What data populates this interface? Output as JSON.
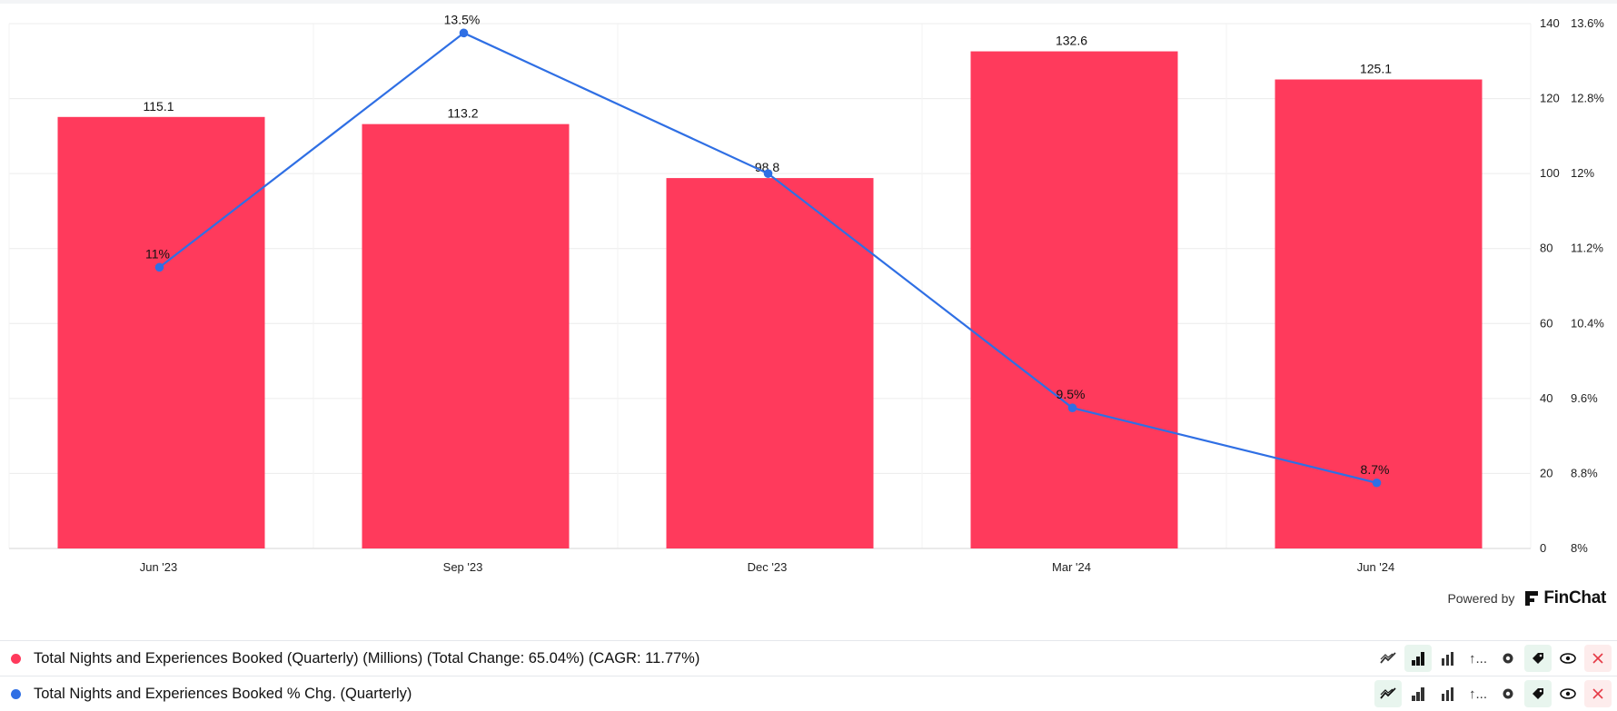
{
  "chart_data": {
    "type": "bar",
    "categories": [
      "Jun '23",
      "Sep '23",
      "Dec '23",
      "Mar '24",
      "Jun '24"
    ],
    "series": [
      {
        "name": "Total Nights and Experiences Booked (Quarterly) (Millions) (Total Change: 65.04%) (CAGR: 11.77%)",
        "type": "bar",
        "axis": "left",
        "values": [
          115.1,
          113.2,
          98.8,
          132.6,
          125.1
        ],
        "labels": [
          "115.1",
          "113.2",
          "98.8",
          "132.6",
          "125.1"
        ]
      },
      {
        "name": "Total Nights and Experiences Booked % Chg. (Quarterly)",
        "type": "line",
        "axis": "right",
        "values": [
          11.0,
          13.5,
          12.0,
          9.5,
          8.7
        ],
        "labels": [
          "11%",
          "13.5%",
          "",
          "9.5%",
          "8.7%"
        ]
      }
    ],
    "y_left": {
      "ylim": [
        0,
        140
      ],
      "ticks": [
        0,
        20,
        40,
        60,
        80,
        100,
        120,
        140
      ],
      "tick_labels": [
        "0",
        "20",
        "40",
        "60",
        "80",
        "100",
        "120",
        "140"
      ]
    },
    "y_right": {
      "ylim": [
        8,
        13.6
      ],
      "ticks": [
        8,
        8.8,
        9.6,
        10.4,
        11.2,
        12,
        12.8,
        13.6
      ],
      "tick_labels": [
        "8%",
        "8.8%",
        "9.6%",
        "10.4%",
        "11.2%",
        "12%",
        "12.8%",
        "13.6%"
      ]
    },
    "grid": true,
    "title": "",
    "xlabel": "",
    "ylabel": ""
  },
  "colors": {
    "bar": "#ff3a5c",
    "line": "#2f6fe4",
    "grid": "#ececec"
  },
  "branding": {
    "powered_by": "Powered by",
    "logo_text": "FinChat"
  },
  "legend": [
    {
      "label": "Total Nights and Experiences Booked (Quarterly) (Millions) (Total Change: 65.04%) (CAGR: 11.77%)",
      "color": "#ff3a5c"
    },
    {
      "label": "Total Nights and Experiences Booked % Chg. (Quarterly)",
      "color": "#2f6fe4"
    }
  ],
  "toolbar": {
    "row1": [
      "line-chart-icon",
      "bar-chart-icon",
      "grouped-bar-icon",
      "sort-icon",
      "gear-icon",
      "tag-icon",
      "eye-icon",
      "close-icon"
    ],
    "row2": [
      "line-chart-icon",
      "bar-chart-icon",
      "grouped-bar-icon",
      "sort-icon",
      "gear-icon",
      "tag-icon",
      "eye-icon",
      "close-icon"
    ],
    "sort_glyph": "↑..."
  }
}
